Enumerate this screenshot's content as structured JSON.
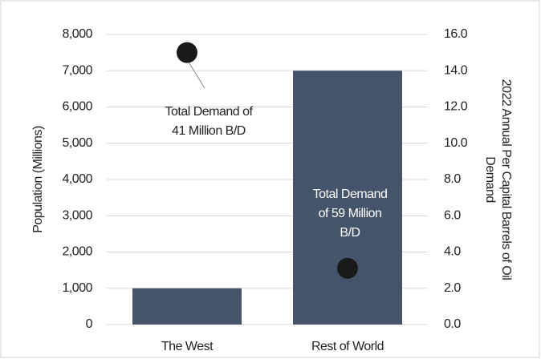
{
  "chart_data": {
    "type": "bar",
    "categories": [
      "The West",
      "Rest of World"
    ],
    "series": [
      {
        "name": "Population (Millions)",
        "color": "#44546a",
        "values": [
          1000,
          7000
        ]
      },
      {
        "name": "2022 Annual Per Capital Barrels of Oil Demand",
        "color": "#1a1a1a",
        "values": [
          15.0,
          3.1
        ],
        "axis": "y2",
        "type": "scatter"
      }
    ],
    "ylabel": "Population (Millions)",
    "y2label": [
      "2022 Annual Per Capital Barrels of Oil",
      "Demand"
    ],
    "ylim": [
      0,
      8000
    ],
    "yticks": [
      0,
      {
        "value": 1000,
        "label": "1,000"
      },
      {
        "value": 2000,
        "label": "2,000"
      },
      {
        "value": 3000,
        "label": "3,000"
      },
      {
        "value": 4000,
        "label": "4,000"
      },
      {
        "value": 5000,
        "label": "5,000"
      },
      {
        "value": 6000,
        "label": "6,000"
      },
      {
        "value": 7000,
        "label": "7,000"
      },
      {
        "value": 8000,
        "label": "8,000"
      }
    ],
    "y2lim": [
      0,
      16
    ],
    "y2ticks": [
      {
        "value": 0,
        "label": "0.0"
      },
      {
        "value": 2,
        "label": "2.0"
      },
      {
        "value": 4,
        "label": "4.0"
      },
      {
        "value": 6,
        "label": "6.0"
      },
      {
        "value": 8,
        "label": "8.0"
      },
      {
        "value": 10,
        "label": "10.0"
      },
      {
        "value": 12,
        "label": "12.0"
      },
      {
        "value": 14,
        "label": "14.0"
      },
      {
        "value": 16,
        "label": "16.0"
      }
    ],
    "grid": true,
    "annotations": [
      {
        "lines": [
          "Total Demand of",
          "41 Million B/D"
        ]
      },
      {
        "lines": [
          "Total Demand",
          "of 59 Million",
          "B/D"
        ]
      }
    ]
  }
}
